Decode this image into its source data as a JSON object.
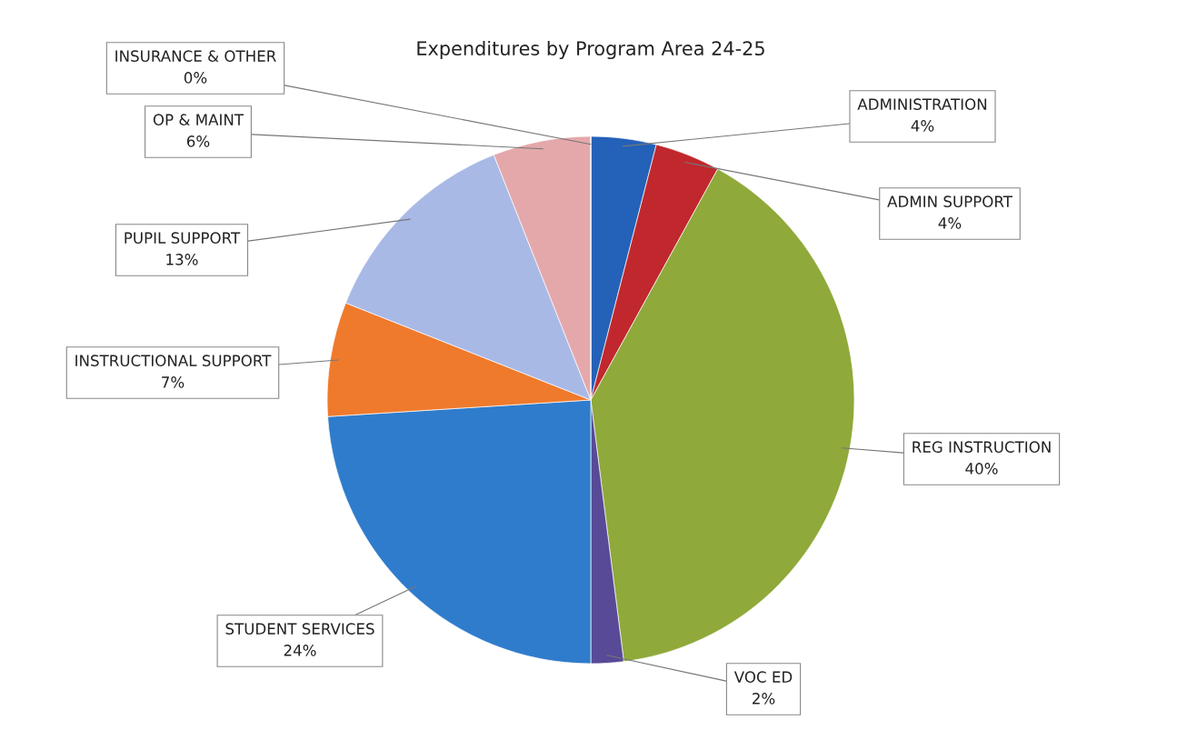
{
  "chart_data": {
    "type": "pie",
    "title": "Expenditures by Program Area 24-25",
    "categories": [
      "ADMINISTRATION",
      "ADMIN SUPPORT",
      "REG INSTRUCTION",
      "VOC ED",
      "STUDENT SERVICES",
      "INSTRUCTIONAL SUPPORT",
      "PUPIL SUPPORT",
      "OP & MAINT",
      "INSURANCE & OTHER"
    ],
    "values": [
      4,
      4,
      40,
      2,
      24,
      7,
      13,
      6,
      0
    ],
    "value_labels": [
      "4%",
      "4%",
      "40%",
      "2%",
      "24%",
      "7%",
      "13%",
      "6%",
      "0%"
    ],
    "colors": [
      "#2461b8",
      "#c0282d",
      "#8fa93a",
      "#584a96",
      "#2f7ccc",
      "#ef7a2c",
      "#a9b9e6",
      "#e4a8ab",
      "#d9d2a2"
    ]
  }
}
